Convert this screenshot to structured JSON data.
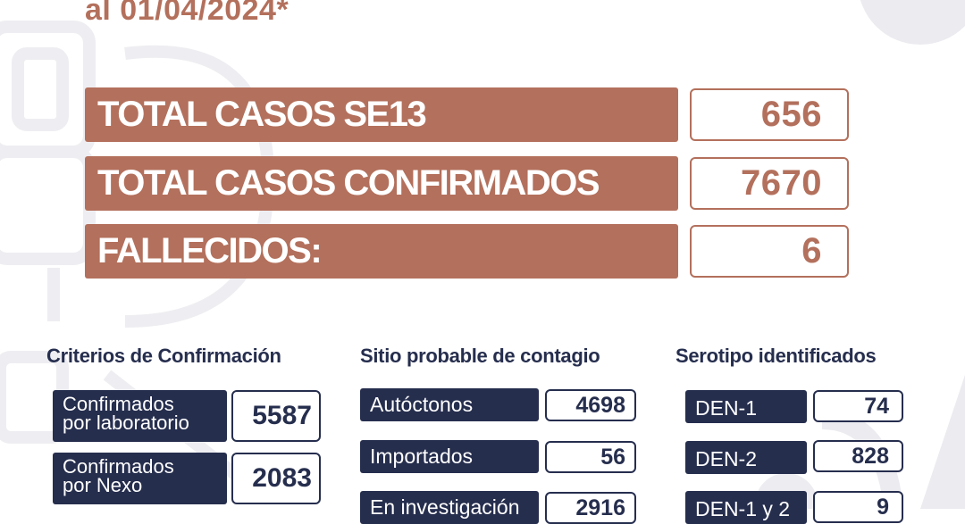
{
  "header": {
    "date_text": "al 01/04/2024*"
  },
  "totals": [
    {
      "label": "TOTAL CASOS SE13",
      "value": "656"
    },
    {
      "label": "TOTAL CASOS CONFIRMADOS",
      "value": "7670"
    },
    {
      "label": "FALLECIDOS:",
      "value": "6"
    }
  ],
  "criterios": {
    "title": "Criterios de Confirmación",
    "items": [
      {
        "line1": "Confirmados",
        "line2": "por laboratorio",
        "value": "5587"
      },
      {
        "line1": "Confirmados",
        "line2": "por Nexo",
        "value": "2083"
      }
    ]
  },
  "sitio": {
    "title": "Sitio probable de contagio",
    "items": [
      {
        "label": "Autóctonos",
        "value": "4698"
      },
      {
        "label": "Importados",
        "value": "56"
      },
      {
        "label": "En investigación",
        "value": "2916"
      }
    ]
  },
  "serotipo": {
    "title": "Serotipo identificados",
    "items": [
      {
        "label": "DEN-1",
        "value": "74"
      },
      {
        "label": "DEN-2",
        "value": "828"
      },
      {
        "label": "DEN-1 y 2",
        "value": "9"
      }
    ]
  },
  "colors": {
    "accent_brown": "#b3705c",
    "navy": "#262e4e",
    "decor_gray": "#f0f0f3"
  }
}
